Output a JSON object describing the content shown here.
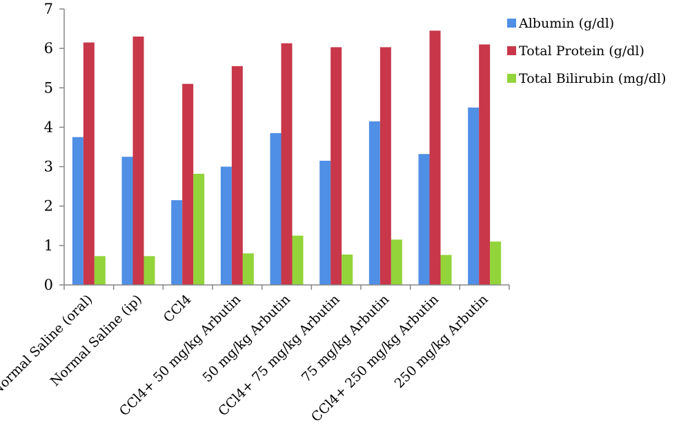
{
  "chart_data": {
    "type": "bar",
    "title": "",
    "xlabel": "",
    "ylabel": "",
    "ylim": [
      0,
      7
    ],
    "yticks": [
      0,
      1,
      2,
      3,
      4,
      5,
      6,
      7
    ],
    "grid": false,
    "legend_position": "top-right",
    "categories": [
      "Normal Saline (oral)",
      "Normal Saline (ip)",
      "CCl4",
      "CCl4+ 50 mg/kg Arbutin",
      "50 mg/kg Arbutin",
      "CCl4+ 75 mg/kg Arbutin",
      "75 mg/kg Arbutin",
      "CCl4+ 250 mg/kg Arbutin",
      "250 mg/kg Arbutin"
    ],
    "series": [
      {
        "name": "Albumin (g/dl)",
        "color": "#4F8FE6",
        "values": [
          3.75,
          3.25,
          2.15,
          3.0,
          3.85,
          3.15,
          4.15,
          3.32,
          4.5
        ]
      },
      {
        "name": "Total Protein (g/dl)",
        "color": "#C8374A",
        "values": [
          6.15,
          6.3,
          5.1,
          5.55,
          6.13,
          6.03,
          6.03,
          6.45,
          6.1
        ]
      },
      {
        "name": "Total Bilirubin (mg/dl)",
        "color": "#92D43A",
        "values": [
          0.73,
          0.73,
          2.82,
          0.8,
          1.25,
          0.77,
          1.15,
          0.76,
          1.1
        ]
      }
    ]
  }
}
